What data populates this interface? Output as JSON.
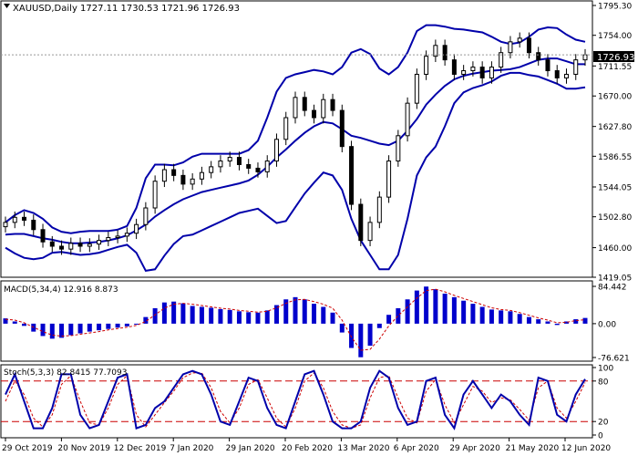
{
  "chart_data": [
    {
      "type": "candlestick",
      "symbol_header": "XAUUSD,Daily",
      "ohlc_header": "1727.11 1730.53 1721.96 1726.93",
      "last_price_label": "1726.93",
      "ylim": [
        1419.05,
        1795.3
      ],
      "ticks": [
        "1795.30",
        "1754.00",
        "1711.55",
        "1670.00",
        "1627.80",
        "1586.55",
        "1544.05",
        "1502.80",
        "1460.00",
        "1419.05"
      ],
      "x_labels": [
        "29 Oct 2019",
        "20 Nov 2019",
        "12 Dec 2019",
        "7 Jan 2020",
        "29 Jan 2020",
        "20 Feb 2020",
        "13 Mar 2020",
        "6 Apr 2020",
        "29 Apr 2020",
        "21 May 2020",
        "12 Jun 2020"
      ],
      "series": [
        {
          "name": "",
          "kind": "bollinger-upper",
          "values": [
            1495,
            1505,
            1512,
            1508,
            1500,
            1488,
            1482,
            1480,
            1482,
            1483,
            1483,
            1483,
            1485,
            1490,
            1515,
            1556,
            1575,
            1575,
            1574,
            1578,
            1586,
            1590,
            1590,
            1590,
            1590,
            1590,
            1595,
            1608,
            1640,
            1676,
            1695,
            1700,
            1703,
            1706,
            1704,
            1700,
            1710,
            1730,
            1735,
            1728,
            1708,
            1700,
            1710,
            1730,
            1760,
            1768,
            1768,
            1766,
            1763,
            1762,
            1760,
            1758,
            1752,
            1745,
            1742,
            1744,
            1752,
            1762,
            1765,
            1764,
            1755,
            1748,
            1745
          ]
        },
        {
          "name": "",
          "kind": "bollinger-middle",
          "values": [
            1478,
            1479,
            1479,
            1476,
            1473,
            1471,
            1468,
            1466,
            1466,
            1467,
            1468,
            1470,
            1473,
            1477,
            1484,
            1492,
            1503,
            1512,
            1520,
            1527,
            1532,
            1537,
            1540,
            1543,
            1546,
            1549,
            1553,
            1561,
            1572,
            1585,
            1596,
            1608,
            1619,
            1628,
            1634,
            1632,
            1624,
            1615,
            1612,
            1608,
            1604,
            1602,
            1608,
            1622,
            1638,
            1658,
            1672,
            1684,
            1693,
            1698,
            1701,
            1703,
            1705,
            1706,
            1707,
            1710,
            1715,
            1720,
            1722,
            1722,
            1718,
            1714,
            1714
          ]
        },
        {
          "name": "",
          "kind": "bollinger-lower",
          "values": [
            1460,
            1452,
            1446,
            1444,
            1446,
            1453,
            1454,
            1452,
            1450,
            1451,
            1453,
            1457,
            1461,
            1464,
            1453,
            1428,
            1430,
            1449,
            1465,
            1476,
            1478,
            1484,
            1490,
            1496,
            1502,
            1508,
            1511,
            1514,
            1504,
            1494,
            1497,
            1516,
            1535,
            1550,
            1564,
            1560,
            1540,
            1500,
            1470,
            1450,
            1430,
            1430,
            1450,
            1500,
            1560,
            1585,
            1600,
            1628,
            1660,
            1675,
            1681,
            1685,
            1690,
            1698,
            1702,
            1702,
            1699,
            1697,
            1692,
            1687,
            1680,
            1680,
            1682
          ]
        },
        {
          "name": "",
          "kind": "close",
          "values": [
            1495,
            1502,
            1498,
            1485,
            1468,
            1462,
            1458,
            1466,
            1462,
            1465,
            1470,
            1474,
            1476,
            1480,
            1492,
            1515,
            1552,
            1568,
            1560,
            1548,
            1555,
            1564,
            1572,
            1580,
            1585,
            1575,
            1570,
            1565,
            1580,
            1610,
            1640,
            1668,
            1650,
            1640,
            1665,
            1650,
            1600,
            1520,
            1470,
            1495,
            1530,
            1580,
            1615,
            1660,
            1700,
            1725,
            1740,
            1720,
            1700,
            1705,
            1710,
            1695,
            1710,
            1730,
            1745,
            1750,
            1730,
            1720,
            1705,
            1695,
            1700,
            1720,
            1726.93
          ]
        },
        {
          "name": "",
          "kind": "macd-histogram",
          "values": [
            12,
            5,
            -5,
            -18,
            -28,
            -34,
            -32,
            -26,
            -22,
            -18,
            -15,
            -12,
            -9,
            -6,
            0,
            15,
            35,
            48,
            50,
            46,
            40,
            38,
            36,
            33,
            31,
            28,
            26,
            25,
            30,
            42,
            55,
            60,
            55,
            45,
            38,
            25,
            -20,
            -55,
            -76,
            -50,
            -10,
            20,
            35,
            55,
            75,
            84,
            78,
            68,
            60,
            52,
            45,
            38,
            32,
            30,
            28,
            22,
            15,
            10,
            5,
            -3,
            5,
            10,
            12.916
          ]
        },
        {
          "name": "",
          "kind": "macd-signal",
          "values": [
            10,
            8,
            2,
            -8,
            -18,
            -26,
            -28,
            -27,
            -24,
            -21,
            -18,
            -14,
            -11,
            -8,
            -4,
            5,
            20,
            35,
            44,
            46,
            44,
            41,
            38,
            35,
            33,
            30,
            28,
            26,
            28,
            36,
            46,
            54,
            55,
            50,
            44,
            35,
            8,
            -30,
            -60,
            -58,
            -35,
            -5,
            18,
            38,
            58,
            75,
            78,
            72,
            64,
            57,
            50,
            43,
            36,
            32,
            30,
            25,
            19,
            13,
            8,
            2,
            3,
            7,
            8.873
          ]
        },
        {
          "name": "",
          "kind": "stoch-k",
          "values": [
            60,
            90,
            50,
            10,
            10,
            40,
            90,
            90,
            30,
            10,
            15,
            50,
            85,
            90,
            10,
            15,
            40,
            50,
            70,
            90,
            95,
            90,
            60,
            20,
            15,
            50,
            85,
            80,
            40,
            15,
            10,
            50,
            90,
            95,
            60,
            20,
            10,
            10,
            20,
            70,
            95,
            85,
            40,
            15,
            20,
            80,
            85,
            30,
            10,
            60,
            80,
            60,
            40,
            60,
            50,
            30,
            15,
            85,
            80,
            30,
            20,
            60,
            82.8415
          ]
        },
        {
          "name": "",
          "kind": "stoch-d",
          "values": [
            50,
            80,
            60,
            25,
            12,
            30,
            75,
            88,
            50,
            18,
            15,
            40,
            75,
            88,
            30,
            12,
            30,
            48,
            65,
            85,
            92,
            92,
            70,
            35,
            18,
            40,
            75,
            82,
            55,
            25,
            12,
            40,
            80,
            92,
            70,
            35,
            15,
            10,
            15,
            55,
            85,
            88,
            55,
            25,
            18,
            65,
            82,
            45,
            18,
            45,
            72,
            65,
            48,
            55,
            52,
            38,
            22,
            70,
            80,
            40,
            25,
            50,
            77.7093
          ]
        }
      ]
    },
    {
      "type": "bar",
      "header": "MACD(5,34,4) 12.916 8.873",
      "ticks": [
        "84.442",
        "0.00",
        "-76.621"
      ],
      "ylim": [
        -76.621,
        84.442
      ]
    },
    {
      "type": "line",
      "header": "Stoch(5,3,3) 82.8415 77.7093",
      "ticks": [
        "100",
        "80",
        "20",
        "0"
      ],
      "ylim": [
        0,
        100
      ],
      "levels": [
        80,
        20
      ]
    }
  ],
  "colors": {
    "price": "#000000",
    "band": "#0000aa",
    "macd": "#0000cc",
    "signal": "#cc0000",
    "stoch_k": "#0000aa",
    "stoch_d": "#cc0000",
    "level": "#cc0000",
    "label_box": "#000000",
    "label_text": "#ffffff"
  }
}
